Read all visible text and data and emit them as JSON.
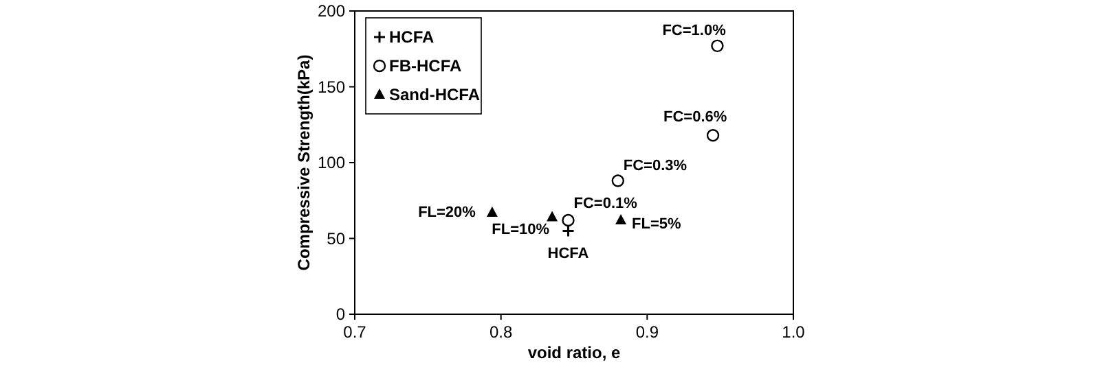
{
  "chart_data": {
    "type": "scatter",
    "xlabel": "void ratio, e",
    "ylabel": "Compressive Strength(kPa)",
    "xlim": [
      0.7,
      1.0
    ],
    "ylim": [
      0,
      200
    ],
    "xticks": [
      {
        "value": 0.7,
        "label": "0.7"
      },
      {
        "value": 0.8,
        "label": "0.8"
      },
      {
        "value": 0.9,
        "label": "0.9"
      },
      {
        "value": 1.0,
        "label": "1.0"
      }
    ],
    "yticks": [
      0,
      50,
      100,
      150,
      200
    ],
    "grid": false,
    "legend": "top left",
    "series": [
      {
        "name": "HCFA",
        "color": "#000000",
        "marker": "cross",
        "x": [
          0.846
        ],
        "values": [
          55
        ]
      },
      {
        "name": "FB-HCFA",
        "color": "#000000",
        "marker": "circle",
        "x": [
          0.846,
          0.88,
          0.945,
          0.948
        ],
        "values": [
          62,
          88,
          118,
          177
        ]
      },
      {
        "name": "Sand-HCFA",
        "color": "#000000",
        "marker": "triangle",
        "x": [
          0.794,
          0.835,
          0.882
        ],
        "values": [
          67,
          64,
          62
        ]
      }
    ],
    "annotations": [
      {
        "text": "HCFA",
        "x": 0.846,
        "y": 55
      },
      {
        "text": "FC=0.1%",
        "x": 0.846,
        "y": 62
      },
      {
        "text": "FC=0.3%",
        "x": 0.88,
        "y": 88
      },
      {
        "text": "FC=0.6%",
        "x": 0.945,
        "y": 118
      },
      {
        "text": "FC=1.0%",
        "x": 0.948,
        "y": 177
      },
      {
        "text": "FL=20%",
        "x": 0.794,
        "y": 67
      },
      {
        "text": "FL=10%",
        "x": 0.835,
        "y": 64
      },
      {
        "text": "FL=5%",
        "x": 0.882,
        "y": 62
      }
    ]
  }
}
